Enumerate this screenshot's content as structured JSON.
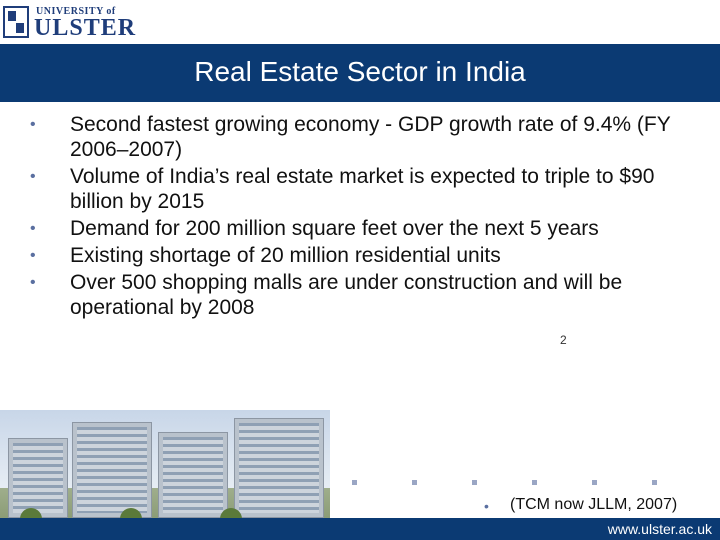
{
  "logo": {
    "university_text": "UNIVERSITY of",
    "name": "ULSTER"
  },
  "slide": {
    "title": "Real Estate Sector in India",
    "bullets": [
      "Second fastest growing economy - GDP growth rate of 9.4% (FY 2006–2007)",
      "Volume of India’s real estate market is expected to triple to $90 billion by 2015",
      "Demand for 200 million square feet over the next 5 years",
      "Existing shortage of 20 million residential units",
      "Over 500 shopping malls are under construction and will be operational by 2008"
    ],
    "citation": "(TCM now JLLM, 2007)",
    "page_number": "2"
  },
  "footer": {
    "url": "www.ulster.ac.uk"
  },
  "colors": {
    "title_bar": "#0b3a73",
    "bullet": "#5a6fa0"
  }
}
